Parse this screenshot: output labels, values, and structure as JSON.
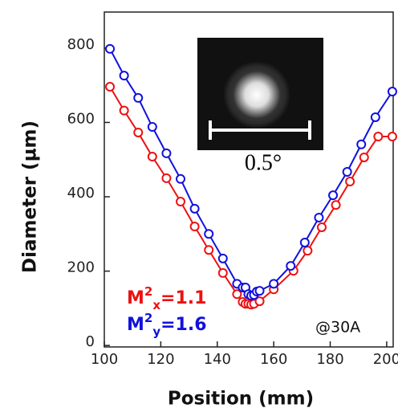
{
  "chart_data": {
    "type": "line",
    "x_label": "Position (mm)",
    "y_label": "Diameter (µm)",
    "xlim": [
      100,
      202.3
    ],
    "ylim": [
      -4,
      897
    ],
    "xticks": [
      100,
      120,
      140,
      160,
      180,
      200
    ],
    "yticks": [
      0,
      200,
      400,
      600,
      800
    ],
    "series": [
      {
        "color": "#ee1111",
        "x": [
          102,
          107,
          112,
          117,
          122,
          127,
          132,
          137,
          142,
          147,
          149,
          150,
          151,
          152,
          153,
          155,
          160,
          167,
          172,
          177,
          182,
          187,
          192,
          197,
          202
        ],
        "values": [
          696,
          632,
          573,
          508,
          450,
          387,
          320,
          257,
          195,
          138,
          117,
          112,
          112,
          110,
          112,
          119,
          151,
          201,
          255,
          318,
          378,
          441,
          506,
          562,
          562
        ]
      },
      {
        "color": "#1111dd",
        "x": [
          102,
          107,
          112,
          117,
          122,
          127,
          132,
          137,
          142,
          147,
          149,
          150,
          151,
          152,
          153,
          154,
          155,
          160,
          166,
          171,
          176,
          181,
          186,
          191,
          196,
          202
        ],
        "values": [
          798,
          726,
          666,
          588,
          517,
          448,
          368,
          300,
          234,
          166,
          156,
          156,
          138,
          134,
          136,
          145,
          147,
          166,
          214,
          277,
          344,
          404,
          467,
          541,
          614,
          683
        ]
      }
    ],
    "annotations": [
      {
        "base": "M",
        "sup": "2",
        "sub": "x",
        "text": "=1.1",
        "color": "#ee1111"
      },
      {
        "base": "M",
        "sup": "2",
        "sub": "y",
        "text": "=1.6",
        "color": "#1111dd"
      },
      {
        "text": "@30A"
      }
    ],
    "inset_label": "0.5°"
  }
}
